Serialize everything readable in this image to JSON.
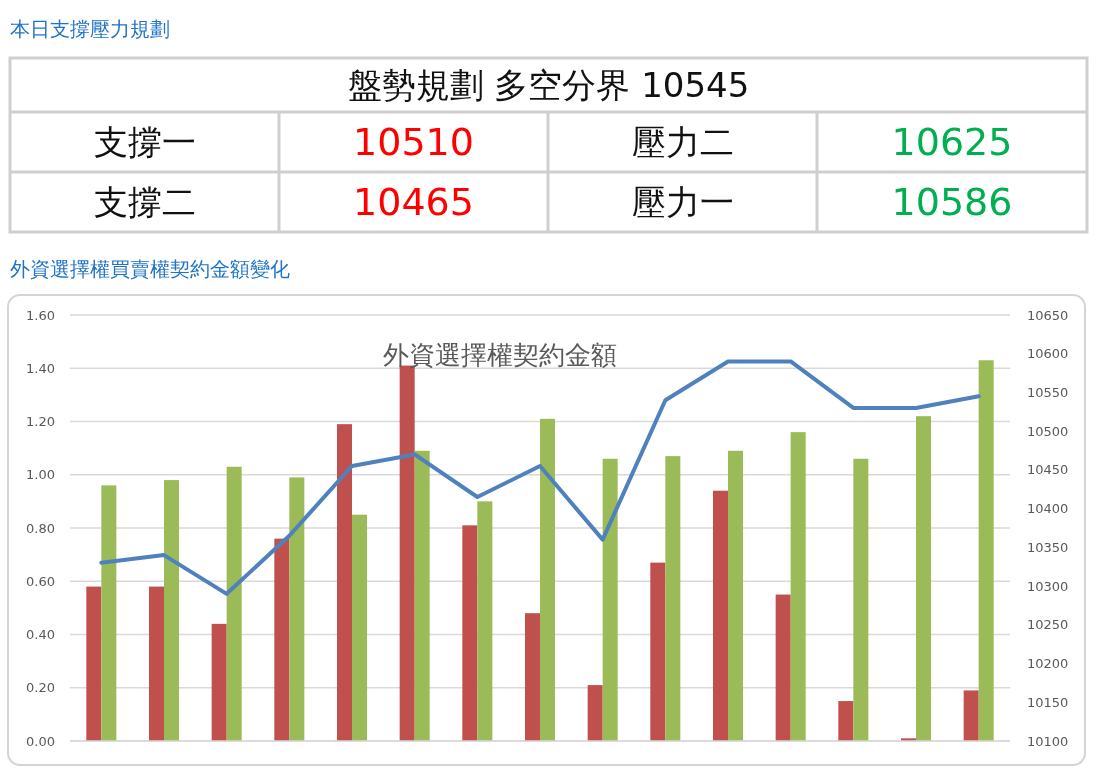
{
  "chart_data": [
    {
      "type": "other",
      "title": "本日支撐壓力規劃",
      "annotations": [
        "盤勢規劃 多空分界 10545",
        "支撐一",
        "10510",
        "壓力二",
        "10625",
        "支撐二",
        "10465",
        "壓力一",
        "10586"
      ],
      "colors": [
        null,
        null,
        "#ff0000",
        null,
        "#00b050",
        null,
        "#ff0000",
        null,
        "#00b050"
      ]
    },
    {
      "type": "bar",
      "title": "外資選擇權買賣權契約金額變化",
      "subtitle": "外資選擇權契約金額",
      "categories": [
        null,
        null,
        null,
        null,
        null,
        null,
        null,
        null,
        null,
        null,
        null,
        null,
        null,
        null,
        null
      ],
      "series": [
        {
          "color": "#c0504d",
          "values": [
            0.58,
            0.58,
            0.44,
            0.76,
            1.19,
            1.41,
            0.81,
            0.48,
            0.21,
            0.67,
            0.94,
            0.55,
            0.15,
            0.01,
            0.19
          ]
        },
        {
          "color": "#9bbb59",
          "values": [
            0.96,
            0.98,
            1.03,
            0.99,
            0.85,
            1.09,
            0.9,
            1.21,
            1.06,
            1.07,
            1.09,
            1.16,
            1.06,
            1.22,
            1.43
          ]
        },
        {
          "type": "line",
          "axis": "y2",
          "color": "#4f81bd",
          "values": [
            10330,
            10340,
            10290,
            10365,
            10455,
            10470,
            10415,
            10455,
            10360,
            10540,
            10590,
            10590,
            10530,
            10530,
            10545
          ]
        }
      ],
      "ylim": [
        0,
        1.6
      ],
      "yticks": [
        {
          "value": 0,
          "label": "0.00"
        },
        {
          "value": 0.2,
          "label": "0.20"
        },
        {
          "value": 0.4,
          "label": "0.40"
        },
        {
          "value": 0.6,
          "label": "0.60"
        },
        {
          "value": 0.8,
          "label": "0.80"
        },
        {
          "value": 1,
          "label": "1.00"
        },
        {
          "value": 1.2,
          "label": "1.20"
        },
        {
          "value": 1.4,
          "label": "1.40"
        },
        {
          "value": 1.6,
          "label": "1.60"
        }
      ],
      "y2lim": [
        10100,
        10650
      ],
      "y2ticks": [
        10100,
        10150,
        10200,
        10250,
        10300,
        10350,
        10400,
        10450,
        10500,
        10550,
        10600,
        10650
      ],
      "grid": "y",
      "line_style": "solid",
      "marker": "none"
    }
  ]
}
